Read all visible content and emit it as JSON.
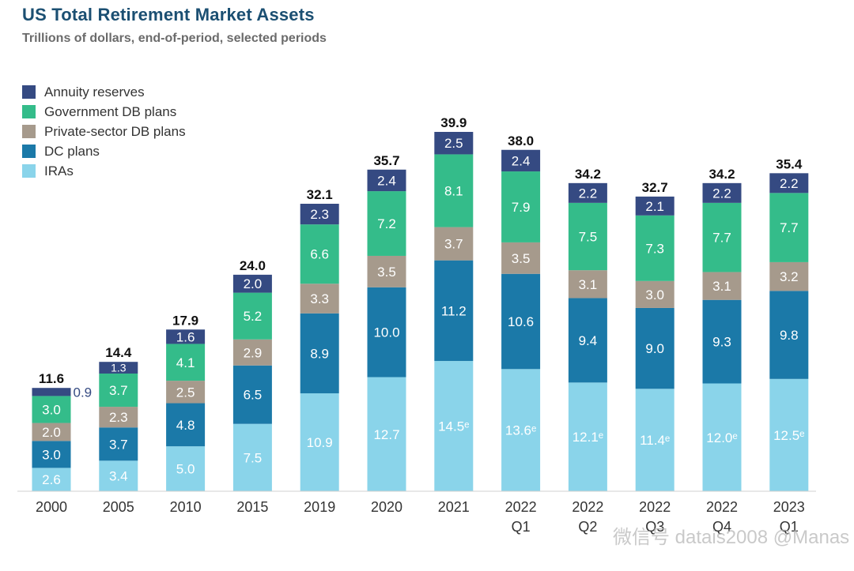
{
  "header": {
    "title": "US Total Retirement Market Assets",
    "subtitle": "Trillions of dollars, end-of-period, selected periods"
  },
  "watermark": "微信号 datais2008 @Manas",
  "chart_data": {
    "type": "bar",
    "stacked": true,
    "title": "US Total Retirement Market Assets",
    "subtitle": "Trillions of dollars, end-of-period, selected periods",
    "categories": [
      "2000",
      "2005",
      "2010",
      "2015",
      "2019",
      "2020",
      "2021",
      "2022 Q1",
      "2022 Q2",
      "2022 Q3",
      "2022 Q4",
      "2023 Q1"
    ],
    "category_labels": [
      [
        "2000"
      ],
      [
        "2005"
      ],
      [
        "2010"
      ],
      [
        "2015"
      ],
      [
        "2019"
      ],
      [
        "2020"
      ],
      [
        "2021"
      ],
      [
        "2022",
        "Q1"
      ],
      [
        "2022",
        "Q2"
      ],
      [
        "2022",
        "Q3"
      ],
      [
        "2022",
        "Q4"
      ],
      [
        "2023",
        "Q1"
      ]
    ],
    "series": [
      {
        "name": "IRAs",
        "color": "#8ad4ea",
        "values": [
          2.6,
          3.4,
          5.0,
          7.5,
          10.9,
          12.7,
          14.5,
          13.6,
          12.1,
          11.4,
          12.0,
          12.5
        ],
        "labels": [
          "2.6",
          "3.4",
          "5.0",
          "7.5",
          "10.9",
          "12.7",
          "14.5ᵉ",
          "13.6ᵉ",
          "12.1ᵉ",
          "11.4ᵉ",
          "12.0ᵉ",
          "12.5ᵉ"
        ]
      },
      {
        "name": "DC plans",
        "color": "#1b79a8",
        "values": [
          3.0,
          3.7,
          4.8,
          6.5,
          8.9,
          10.0,
          11.2,
          10.6,
          9.4,
          9.0,
          9.3,
          9.8
        ],
        "labels": [
          "3.0",
          "3.7",
          "4.8",
          "6.5",
          "8.9",
          "10.0",
          "11.2",
          "10.6",
          "9.4",
          "9.0",
          "9.3",
          "9.8"
        ]
      },
      {
        "name": "Private-sector DB plans",
        "color": "#a69a8c",
        "values": [
          2.0,
          2.3,
          2.5,
          2.9,
          3.3,
          3.5,
          3.7,
          3.5,
          3.1,
          3.0,
          3.1,
          3.2
        ],
        "labels": [
          "2.0",
          "2.3",
          "2.5",
          "2.9",
          "3.3",
          "3.5",
          "3.7",
          "3.5",
          "3.1",
          "3.0",
          "3.1",
          "3.2"
        ]
      },
      {
        "name": "Government DB plans",
        "color": "#34bc8a",
        "values": [
          3.0,
          3.7,
          4.1,
          5.2,
          6.6,
          7.2,
          8.1,
          7.9,
          7.5,
          7.3,
          7.7,
          7.7
        ],
        "labels": [
          "3.0",
          "3.7",
          "4.1",
          "5.2",
          "6.6",
          "7.2",
          "8.1",
          "7.9",
          "7.5",
          "7.3",
          "7.7",
          "7.7"
        ]
      },
      {
        "name": "Annuity reserves",
        "color": "#354a82",
        "values": [
          0.9,
          1.3,
          1.6,
          2.0,
          2.3,
          2.4,
          2.5,
          2.4,
          2.2,
          2.1,
          2.2,
          2.2
        ],
        "labels": [
          "0.9",
          "1.3",
          "1.6",
          "2.0",
          "2.3",
          "2.4",
          "2.5",
          "2.4",
          "2.2",
          "2.1",
          "2.2",
          "2.2"
        ]
      }
    ],
    "totals": [
      "11.6",
      "14.4",
      "17.9",
      "24.0",
      "32.1",
      "35.7",
      "39.9",
      "38.0",
      "34.2",
      "32.7",
      "34.2",
      "35.4"
    ],
    "legend_order": [
      "Annuity reserves",
      "Government DB plans",
      "Private-sector DB plans",
      "DC plans",
      "IRAs"
    ],
    "legend_placement": "top-left",
    "xlabel": "",
    "ylabel": "",
    "ylim": [
      0,
      40
    ],
    "grid": false
  }
}
